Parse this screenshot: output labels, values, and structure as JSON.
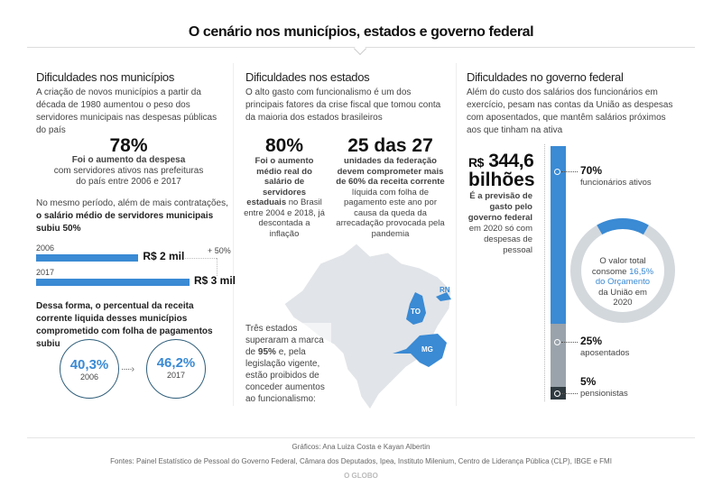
{
  "title": "O cenário nos municípios, estados e governo federal",
  "municipios": {
    "heading": "Dificuldades nos municípios",
    "intro": "A criação de novos municípios a partir da década de 1980 aumentou o peso dos servidores municipais nas despesas públicas do país",
    "stat": "78%",
    "stat_bold": "Foi o aumento da despesa",
    "stat_text": "com servidores ativos nas prefeituras do país entre 2006 e 2017",
    "salary_intro": "No mesmo período, além de mais contratações,",
    "salary_bold": "o salário médio de servidores municipais subiu 50%",
    "bars": [
      {
        "year": "2006",
        "label": "R$ 2 mil",
        "value": 2
      },
      {
        "year": "2017",
        "label": "R$ 3 mil",
        "value": 3
      }
    ],
    "increase": "+ 50%",
    "receita_text": "Dessa forma, o percentual da receita corrente liquida desses municípios comprometido com folha de pagamentos subiu",
    "circles": [
      {
        "value": "40,3%",
        "year": "2006"
      },
      {
        "value": "46,2%",
        "year": "2017"
      }
    ]
  },
  "estados": {
    "heading": "Dificuldades nos estados",
    "intro": "O alto gasto com funcionalismo é um dos principais fatores da crise fiscal que tomou conta da maioria dos estados brasileiros",
    "stat1": "80%",
    "stat1_bold": "Foi o aumento médio real do salário de servidores estaduais",
    "stat1_text": "no Brasil entre 2004 e 2018, já descontada a inflação",
    "stat2": "25 das 27",
    "stat2_bold": "unidades da federação devem comprometer mais de 60% da receita corrente",
    "stat2_text": "líquida com folha de pagamento este ano por causa da queda da arrecadação provocada pela pandemia",
    "map_text_1": "Três estados superaram a marca de ",
    "map_text_bold": "95%",
    "map_text_2": " e, pela legislação vigente, estão proibidos de conceder aumentos ao funcionalismo:",
    "states": [
      "TO",
      "MG",
      "RN"
    ]
  },
  "federal": {
    "heading": "Dificuldades no governo federal",
    "intro": "Além do custo dos salários dos funcionários em exercício, pesam nas contas da União as despesas com aposentados, que mantêm salários próximos aos que tinham na ativa",
    "currency": "R$",
    "amount": "344,6",
    "unit": "bilhões",
    "amount_bold": "É a previsão de gasto pelo governo federal",
    "amount_text": "em 2020 só com despesas de pessoal",
    "segments": [
      {
        "pct": "70%",
        "label": "funcionários ativos",
        "value": 70,
        "color": "#3a8ad4"
      },
      {
        "pct": "25%",
        "label": "aposentados",
        "value": 25,
        "color": "#9aa3ab"
      },
      {
        "pct": "5%",
        "label": "pensionistas",
        "value": 5,
        "color": "#2f3a40"
      }
    ],
    "donut_value": 16.5,
    "donut_text_1": "O valor total consome",
    "donut_highlight": "16,5% do Orçamento",
    "donut_text_2": "da União em 2020"
  },
  "footer": {
    "credits": "Gráficos: Ana Luiza Costa e Kayan Albertin",
    "sources": "Fontes: Painel Estatístico de Pessoal do Governo Federal, Câmara dos Deputados, Ipea, Instituto Milenium, Centro de Liderança Pública (CLP), IBGE e FMI",
    "logo": "O GLOBO"
  }
}
